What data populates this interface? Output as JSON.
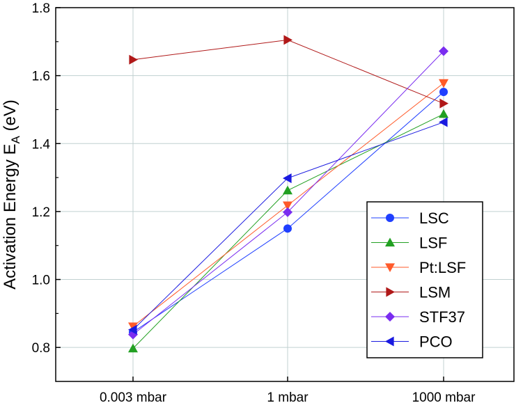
{
  "chart_data": {
    "type": "line",
    "title": "",
    "xlabel": "",
    "ylabel": "Activation Energy E",
    "ylabel_subscript": "A",
    "ylabel_suffix": " (eV)",
    "categories": [
      "0.003 mbar",
      "1 mbar",
      "1000 mbar"
    ],
    "ylim": [
      0.7,
      1.8
    ],
    "yticks": [
      0.8,
      1.0,
      1.2,
      1.4,
      1.6,
      1.8
    ],
    "ytick_labels": [
      "0.8",
      "1.0",
      "1.2",
      "1.4",
      "1.6",
      "1.8"
    ],
    "grid": true,
    "legend_position": "bottom-right",
    "series": [
      {
        "name": "LSC",
        "marker": "circle",
        "color": "#1f3fff",
        "values": [
          0.845,
          1.15,
          1.552
        ]
      },
      {
        "name": "LSF",
        "marker": "triangle-up",
        "color": "#22a022",
        "values": [
          0.797,
          1.262,
          1.487
        ]
      },
      {
        "name": "Pt:LSF",
        "marker": "triangle-down",
        "color": "#ff5a2a",
        "values": [
          0.862,
          1.218,
          1.578
        ]
      },
      {
        "name": "LSM",
        "marker": "triangle-right",
        "color": "#b01818",
        "values": [
          1.647,
          1.705,
          1.518
        ]
      },
      {
        "name": "STF37",
        "marker": "diamond",
        "color": "#7a2cf0",
        "values": [
          0.838,
          1.198,
          1.672
        ]
      },
      {
        "name": "PCO",
        "marker": "triangle-left",
        "color": "#1a1ae0",
        "values": [
          0.852,
          1.298,
          1.463
        ]
      }
    ]
  }
}
